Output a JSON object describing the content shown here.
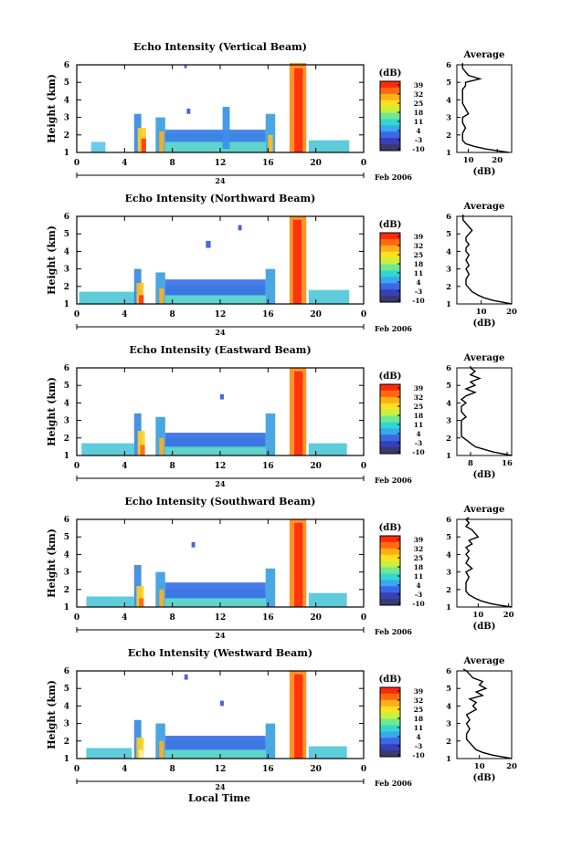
{
  "figure": {
    "xlabel": "Local Time",
    "colorbar_units": "(dB)",
    "colorbar_ticks": [
      "39",
      "32",
      "25",
      "18",
      "11",
      "4",
      "-3",
      "-10"
    ],
    "colorbar_colors": [
      "#ff2a0a",
      "#ff6a10",
      "#ffae18",
      "#ffe020",
      "#c8f040",
      "#70e890",
      "#30d8d0",
      "#3aa8ee",
      "#3a68e6",
      "#3840b8",
      "#383a70"
    ],
    "date_marker": "24",
    "date_label": "Feb 2006",
    "avg_title": "Average",
    "avg_xlabel": "(dB)"
  },
  "chart_data": [
    {
      "type": "heatmap",
      "title": "Echo Intensity (Vertical Beam)",
      "xlabel": "Local Time",
      "ylabel": "Height (km)",
      "xticks": [
        "0",
        "4",
        "8",
        "12",
        "16",
        "20",
        "0"
      ],
      "yticks": [
        "1",
        "2",
        "3",
        "4",
        "5",
        "6"
      ],
      "xlim": [
        0,
        24
      ],
      "ylim": [
        1,
        6
      ],
      "cells": [
        [
          1.2,
          2.4,
          1.0,
          1.6,
          "#5ac8e8"
        ],
        [
          4.8,
          5.4,
          1.0,
          3.2,
          "#3a88e0"
        ],
        [
          5.1,
          5.8,
          1.0,
          2.4,
          "#ffd020"
        ],
        [
          5.4,
          5.8,
          1.0,
          1.8,
          "#ff3a10"
        ],
        [
          6.6,
          7.4,
          1.0,
          3.0,
          "#3a9ee0"
        ],
        [
          6.9,
          7.3,
          1.0,
          2.2,
          "#ffb020"
        ],
        [
          7.4,
          15.8,
          1.0,
          2.1,
          "#50d0c8"
        ],
        [
          7.4,
          15.8,
          1.6,
          2.3,
          "#3a7ee6"
        ],
        [
          12.2,
          12.8,
          1.2,
          3.6,
          "#3a90e8"
        ],
        [
          15.8,
          16.6,
          1.0,
          3.2,
          "#3aa0e0"
        ],
        [
          16.0,
          16.4,
          1.0,
          2.0,
          "#ffc020"
        ],
        [
          17.8,
          19.2,
          1.0,
          6.1,
          "#ff8a18"
        ],
        [
          18.2,
          18.9,
          1.0,
          5.8,
          "#ff2a0a"
        ],
        [
          19.4,
          22.8,
          1.0,
          1.7,
          "#50c8d8"
        ],
        [
          9.2,
          9.5,
          3.2,
          3.5,
          "#3a58e0"
        ],
        [
          9.0,
          9.2,
          5.8,
          6.0,
          "#3a58e0"
        ]
      ],
      "avg": {
        "xticks": [
          "10",
          "20"
        ],
        "xlim": [
          6,
          25
        ],
        "x": [
          24,
          20,
          16,
          12,
          9,
          8,
          8,
          8,
          9,
          8,
          8,
          10,
          9,
          8,
          8,
          8,
          8,
          8,
          9,
          9,
          14,
          10,
          9,
          8,
          8,
          8
        ],
        "y": [
          1.0,
          1.1,
          1.2,
          1.35,
          1.5,
          1.7,
          1.9,
          2.1,
          2.4,
          2.7,
          3.0,
          3.2,
          3.5,
          3.8,
          4.0,
          4.2,
          4.4,
          4.6,
          4.8,
          5.0,
          5.2,
          5.4,
          5.6,
          5.8,
          6.0,
          6.1
        ]
      }
    },
    {
      "type": "heatmap",
      "title": "Echo Intensity (Northward Beam)",
      "xlabel": "Local Time",
      "ylabel": "Height (km)",
      "xticks": [
        "0",
        "4",
        "8",
        "12",
        "16",
        "20",
        "0"
      ],
      "yticks": [
        "1",
        "2",
        "3",
        "4",
        "5",
        "6"
      ],
      "xlim": [
        0,
        24
      ],
      "ylim": [
        1,
        6
      ],
      "cells": [
        [
          0.2,
          5.2,
          1.0,
          1.7,
          "#50c8d8"
        ],
        [
          4.8,
          5.4,
          1.0,
          3.0,
          "#3a88e0"
        ],
        [
          5.0,
          5.6,
          1.0,
          2.2,
          "#ffc020"
        ],
        [
          5.2,
          5.6,
          1.0,
          1.5,
          "#ff3a10"
        ],
        [
          6.6,
          7.4,
          1.0,
          2.8,
          "#3a9ee0"
        ],
        [
          6.9,
          7.3,
          1.0,
          1.9,
          "#ffb020"
        ],
        [
          7.4,
          15.8,
          1.0,
          2.0,
          "#50d0c8"
        ],
        [
          7.4,
          15.8,
          1.5,
          2.4,
          "#3a70e6"
        ],
        [
          15.8,
          16.6,
          1.0,
          3.0,
          "#3aa0e0"
        ],
        [
          17.8,
          19.2,
          1.0,
          6.0,
          "#ff8a18"
        ],
        [
          18.1,
          18.8,
          1.0,
          5.8,
          "#ff2a0a"
        ],
        [
          19.4,
          22.8,
          1.0,
          1.8,
          "#50c8d8"
        ],
        [
          10.8,
          11.2,
          4.2,
          4.6,
          "#3a58e0"
        ],
        [
          13.5,
          13.8,
          5.2,
          5.5,
          "#3a58e0"
        ]
      ],
      "avg": {
        "xticks": [
          "10",
          "20"
        ],
        "xlim": [
          2,
          20
        ],
        "x": [
          20,
          17,
          14,
          11,
          9,
          7,
          6,
          5,
          5,
          6,
          5,
          6,
          5,
          6,
          5,
          5,
          6,
          5,
          5,
          6,
          7,
          6,
          5,
          4,
          4,
          4
        ],
        "y": [
          1.0,
          1.1,
          1.2,
          1.35,
          1.5,
          1.7,
          1.9,
          2.1,
          2.4,
          2.7,
          3.0,
          3.2,
          3.5,
          3.8,
          4.0,
          4.2,
          4.4,
          4.6,
          4.8,
          5.0,
          5.2,
          5.4,
          5.6,
          5.8,
          6.0,
          6.1
        ]
      }
    },
    {
      "type": "heatmap",
      "title": "Echo Intensity (Eastward Beam)",
      "xlabel": "Local Time",
      "ylabel": "Height (km)",
      "xticks": [
        "0",
        "4",
        "8",
        "12",
        "16",
        "20",
        "0"
      ],
      "yticks": [
        "1",
        "2",
        "3",
        "4",
        "5",
        "6"
      ],
      "xlim": [
        0,
        24
      ],
      "ylim": [
        1,
        6
      ],
      "cells": [
        [
          0.4,
          4.8,
          1.0,
          1.7,
          "#50c8d8"
        ],
        [
          4.8,
          5.4,
          1.0,
          3.4,
          "#3a88e0"
        ],
        [
          5.1,
          5.7,
          1.0,
          2.4,
          "#ffd020"
        ],
        [
          5.3,
          5.7,
          1.0,
          1.6,
          "#ff6a10"
        ],
        [
          6.6,
          7.4,
          1.0,
          3.2,
          "#3a9ee0"
        ],
        [
          6.9,
          7.3,
          1.0,
          2.0,
          "#ffb020"
        ],
        [
          7.4,
          15.8,
          1.0,
          2.0,
          "#50d0c8"
        ],
        [
          7.4,
          15.8,
          1.5,
          2.3,
          "#3a70e6"
        ],
        [
          15.8,
          16.6,
          1.0,
          3.4,
          "#3aa0e0"
        ],
        [
          17.8,
          19.2,
          1.0,
          6.0,
          "#ff8a18"
        ],
        [
          18.2,
          18.9,
          1.0,
          5.8,
          "#ff2a0a"
        ],
        [
          19.4,
          22.6,
          1.0,
          1.7,
          "#50c8d8"
        ],
        [
          12.0,
          12.3,
          4.2,
          4.5,
          "#3a58e0"
        ]
      ],
      "avg": {
        "xticks": [
          "8",
          "16"
        ],
        "xlim": [
          5,
          17
        ],
        "x": [
          17,
          15,
          13,
          11,
          9,
          8,
          7,
          6,
          6,
          6,
          6,
          7,
          6,
          6,
          7,
          6,
          7,
          9,
          7,
          9,
          8,
          10,
          8,
          9,
          8,
          8
        ],
        "y": [
          1.0,
          1.1,
          1.2,
          1.35,
          1.5,
          1.7,
          1.9,
          2.1,
          2.4,
          2.7,
          3.0,
          3.2,
          3.5,
          3.8,
          4.0,
          4.2,
          4.4,
          4.6,
          4.8,
          5.0,
          5.2,
          5.4,
          5.6,
          5.8,
          6.0,
          6.1
        ]
      }
    },
    {
      "type": "heatmap",
      "title": "Echo Intensity (Southward Beam)",
      "xlabel": "Local Time",
      "ylabel": "Height (km)",
      "xticks": [
        "0",
        "4",
        "8",
        "12",
        "16",
        "20",
        "0"
      ],
      "yticks": [
        "1",
        "2",
        "3",
        "4",
        "5",
        "6"
      ],
      "xlim": [
        0,
        24
      ],
      "ylim": [
        1,
        6
      ],
      "cells": [
        [
          0.8,
          4.8,
          1.0,
          1.6,
          "#50c8d8"
        ],
        [
          4.8,
          5.4,
          1.0,
          3.4,
          "#3a88e0"
        ],
        [
          5.0,
          5.6,
          1.0,
          2.2,
          "#ffd020"
        ],
        [
          5.2,
          5.6,
          1.0,
          1.5,
          "#ff6a10"
        ],
        [
          6.6,
          7.4,
          1.0,
          3.0,
          "#3a9ee0"
        ],
        [
          6.9,
          7.3,
          1.0,
          2.0,
          "#ffb020"
        ],
        [
          7.4,
          15.8,
          1.0,
          2.0,
          "#50d0c8"
        ],
        [
          7.4,
          15.8,
          1.5,
          2.4,
          "#3a70e6"
        ],
        [
          15.8,
          16.6,
          1.0,
          3.2,
          "#3aa0e0"
        ],
        [
          17.8,
          19.2,
          1.0,
          6.0,
          "#ff8a18"
        ],
        [
          18.2,
          18.9,
          1.0,
          5.8,
          "#ff2a0a"
        ],
        [
          19.4,
          22.6,
          1.0,
          1.8,
          "#50c8d8"
        ],
        [
          9.6,
          9.9,
          4.4,
          4.7,
          "#3a58e0"
        ]
      ],
      "avg": {
        "xticks": [
          "10",
          "20"
        ],
        "xlim": [
          3,
          21
        ],
        "x": [
          21,
          17,
          14,
          11,
          9,
          7,
          6,
          6,
          6,
          7,
          6,
          8,
          6,
          7,
          6,
          7,
          6,
          8,
          7,
          10,
          9,
          8,
          6,
          7,
          6,
          7
        ],
        "y": [
          1.0,
          1.1,
          1.2,
          1.35,
          1.5,
          1.7,
          1.9,
          2.1,
          2.4,
          2.7,
          3.0,
          3.2,
          3.5,
          3.8,
          4.0,
          4.2,
          4.4,
          4.6,
          4.8,
          5.0,
          5.2,
          5.4,
          5.6,
          5.8,
          6.0,
          6.1
        ]
      }
    },
    {
      "type": "heatmap",
      "title": "Echo Intensity (Westward Beam)",
      "xlabel": "Local Time",
      "ylabel": "Height (km)",
      "xticks": [
        "0",
        "4",
        "8",
        "12",
        "16",
        "20",
        "0"
      ],
      "yticks": [
        "1",
        "2",
        "3",
        "4",
        "5",
        "6"
      ],
      "xlim": [
        0,
        24
      ],
      "ylim": [
        1,
        6
      ],
      "cells": [
        [
          0.8,
          4.6,
          1.0,
          1.6,
          "#50c8d8"
        ],
        [
          4.8,
          5.4,
          1.0,
          3.2,
          "#3a88e0"
        ],
        [
          5.0,
          5.6,
          1.0,
          2.2,
          "#ffd020"
        ],
        [
          5.2,
          5.6,
          1.0,
          1.5,
          "#fff0a0"
        ],
        [
          6.6,
          7.4,
          1.0,
          3.0,
          "#3a9ee0"
        ],
        [
          6.9,
          7.3,
          1.0,
          2.0,
          "#ffb020"
        ],
        [
          7.4,
          15.8,
          1.0,
          2.0,
          "#50d0c8"
        ],
        [
          7.4,
          15.8,
          1.5,
          2.3,
          "#3a70e6"
        ],
        [
          15.8,
          16.6,
          1.0,
          3.0,
          "#3aa0e0"
        ],
        [
          17.8,
          19.2,
          1.0,
          6.0,
          "#ff8a18"
        ],
        [
          18.2,
          18.9,
          1.0,
          5.8,
          "#ff2a0a"
        ],
        [
          19.4,
          22.6,
          1.0,
          1.7,
          "#50c8d8"
        ],
        [
          9.0,
          9.3,
          5.5,
          5.8,
          "#3a58e0"
        ],
        [
          12.0,
          12.3,
          4.0,
          4.3,
          "#3a58e0"
        ]
      ],
      "avg": {
        "xticks": [
          "10",
          "20"
        ],
        "xlim": [
          3,
          20
        ],
        "x": [
          20,
          17,
          14,
          11,
          9,
          8,
          7,
          6,
          6,
          7,
          6,
          7,
          6,
          9,
          8,
          9,
          7,
          11,
          9,
          12,
          10,
          11,
          8,
          7,
          6,
          5
        ],
        "y": [
          1.0,
          1.1,
          1.2,
          1.35,
          1.5,
          1.7,
          1.9,
          2.1,
          2.4,
          2.7,
          3.0,
          3.2,
          3.5,
          3.8,
          4.0,
          4.2,
          4.4,
          4.6,
          4.8,
          5.0,
          5.2,
          5.4,
          5.6,
          5.8,
          6.0,
          6.1
        ]
      }
    }
  ]
}
